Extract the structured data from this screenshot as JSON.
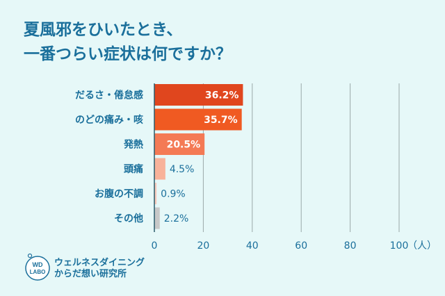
{
  "title": {
    "line1": "夏風邪をひいたとき、",
    "line2": "一番つらい症状は何ですか？"
  },
  "colors": {
    "text": "#1a6f9b",
    "background": "#e6f8f8",
    "grid": "#9aa8a8"
  },
  "chart_data": {
    "type": "bar",
    "orientation": "horizontal",
    "categories": [
      "だるさ・倦怠感",
      "のどの痛み・咳",
      "発熱",
      "頭痛",
      "お腹の不調",
      "その他"
    ],
    "values": [
      36.2,
      35.7,
      20.5,
      4.5,
      0.9,
      2.2
    ],
    "value_labels": [
      "36.2%",
      "35.7%",
      "20.5%",
      "4.5%",
      "0.9%",
      "2.2%"
    ],
    "bar_colors": [
      "#e0461e",
      "#f05a22",
      "#f47a55",
      "#f8b29a",
      "#f7c9bb",
      "#c8c8c8"
    ],
    "x_ticks": [
      0,
      20,
      40,
      60,
      80,
      100
    ],
    "xlim": [
      0,
      100
    ],
    "x_unit": "（人）",
    "grid": true
  },
  "logo": {
    "mark_line1": "WD",
    "mark_line2": "LABO",
    "name_line1": "ウェルネスダイニング",
    "name_line2": "からだ想い研究所"
  }
}
